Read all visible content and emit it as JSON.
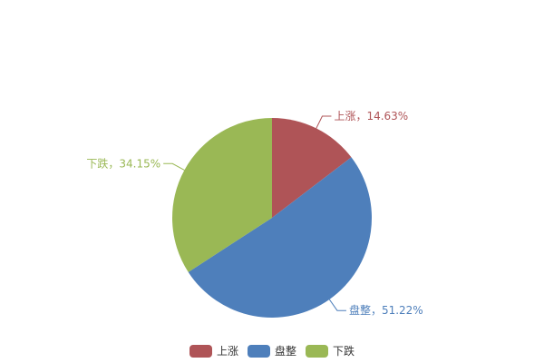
{
  "chart_data": {
    "type": "pie",
    "start_angle": "top, clockwise",
    "legend_position": "bottom",
    "slices": [
      {
        "name": "上涨",
        "percent": 14.63,
        "label": "上涨，14.63%",
        "color": "#AF5457"
      },
      {
        "name": "盘整",
        "percent": 51.22,
        "label": "盘整，51.22%",
        "color": "#4E7FBB"
      },
      {
        "name": "下跌",
        "percent": 34.15,
        "label": "下跌，34.15%",
        "color": "#9AB855"
      }
    ]
  }
}
